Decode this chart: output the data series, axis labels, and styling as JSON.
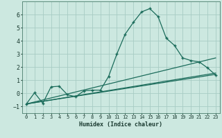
{
  "xlabel": "Humidex (Indice chaleur)",
  "bg_color": "#cce8e0",
  "grid_color": "#a8ccc4",
  "line_color": "#1a6b5a",
  "xlim": [
    -0.5,
    23.5
  ],
  "ylim": [
    -1.5,
    7.0
  ],
  "yticks": [
    -1,
    0,
    1,
    2,
    3,
    4,
    5,
    6
  ],
  "xticks": [
    0,
    1,
    2,
    3,
    4,
    5,
    6,
    7,
    8,
    9,
    10,
    11,
    12,
    13,
    14,
    15,
    16,
    17,
    18,
    19,
    20,
    21,
    22,
    23
  ],
  "curve1_x": [
    0,
    1,
    2,
    3,
    4,
    5,
    6,
    7,
    8,
    9,
    10,
    11,
    12,
    13,
    14,
    15,
    16,
    17,
    18,
    19,
    20,
    21,
    22,
    23
  ],
  "curve1_y": [
    -0.8,
    0.05,
    -0.75,
    0.5,
    0.55,
    -0.1,
    -0.25,
    0.2,
    0.25,
    0.25,
    1.3,
    3.0,
    4.5,
    5.4,
    6.2,
    6.45,
    5.85,
    4.2,
    3.65,
    2.7,
    2.5,
    2.4,
    1.95,
    1.4
  ],
  "curve2_x": [
    0,
    23
  ],
  "curve2_y": [
    -0.8,
    2.7
  ],
  "curve3_x": [
    0,
    23
  ],
  "curve3_y": [
    -0.8,
    1.55
  ],
  "curve4_x": [
    0,
    23
  ],
  "curve4_y": [
    -0.8,
    1.45
  ]
}
